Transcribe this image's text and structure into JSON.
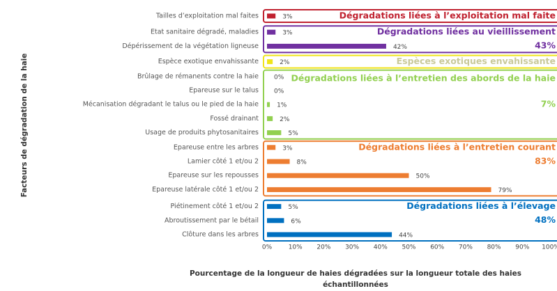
{
  "chart_data": {
    "type": "bar",
    "ylabel": "Facteurs de dégradation de la haie",
    "xlabel": [
      "Pourcentage de la longueur de haies dégradées sur la longueur totale des haies",
      "échantillonnées"
    ],
    "xlim": [
      0,
      100
    ],
    "xticks": [
      {
        "value": 0,
        "label": "0%"
      },
      {
        "value": 10,
        "label": "10%"
      },
      {
        "value": 20,
        "label": "20%"
      },
      {
        "value": 30,
        "label": "30%"
      },
      {
        "value": 40,
        "label": "40%"
      },
      {
        "value": 50,
        "label": "50%"
      },
      {
        "value": 60,
        "label": "60%"
      },
      {
        "value": 70,
        "label": "70%"
      },
      {
        "value": 80,
        "label": "80%"
      },
      {
        "value": 90,
        "label": "90%"
      },
      {
        "value": 100,
        "label": "100%"
      }
    ],
    "groups": [
      {
        "name": "Dégradations liées à l’exploitation mal faite",
        "color": "#c0212f",
        "categories": [
          "Tailles d’exploitation mal faites"
        ],
        "values": [
          3
        ],
        "value_labels": [
          "3%"
        ]
      },
      {
        "name": "Dégradations liées au vieillissement",
        "color": "#7030a0",
        "total": 43,
        "total_label": "43%",
        "categories": [
          "Etat sanitaire dégradé, maladies",
          "Dépérissement de la végétation ligneuse"
        ],
        "values": [
          3,
          42
        ],
        "value_labels": [
          "3%",
          "42%"
        ]
      },
      {
        "name": "Espèces exotiques envahissante",
        "color": "#f0e41a",
        "text_color": "#c9c99a",
        "categories": [
          "Espèce exotique envahissante"
        ],
        "values": [
          2
        ],
        "value_labels": [
          "2%"
        ]
      },
      {
        "name": "Dégradations liées à l’entretien des abords de la haie",
        "color": "#92d050",
        "total": 7,
        "total_label": "7%",
        "categories": [
          "Brûlage de rémanents contre la haie",
          "Epareuse sur le talus",
          "Mécanisation dégradant le talus ou le pied de la haie",
          "Fossé drainant",
          "Usage de produits phytosanitaires"
        ],
        "values": [
          0,
          0,
          1,
          2,
          5
        ],
        "value_labels": [
          "0%",
          "0%",
          "1%",
          "2%",
          "5%"
        ]
      },
      {
        "name": "Dégradations liées à l’entretien courant",
        "color": "#ed7d31",
        "total": 83,
        "total_label": "83%",
        "categories": [
          "Epareuse entre les arbres",
          "Lamier côté 1 et/ou 2",
          "Epareuse sur les repousses",
          "Epareuse latérale côté 1 et/ou 2"
        ],
        "values": [
          3,
          8,
          50,
          79
        ],
        "value_labels": [
          "3%",
          "8%",
          "50%",
          "79%"
        ]
      },
      {
        "name": "Dégradations liées à l’élevage",
        "color": "#0070c0",
        "total": 48,
        "total_label": "48%",
        "categories": [
          "Piétinement côté 1 et/ou 2",
          "Abroutissement par le bétail",
          "Clôture dans les arbres"
        ],
        "values": [
          5,
          6,
          44
        ],
        "value_labels": [
          "5%",
          "6%",
          "44%"
        ]
      }
    ]
  }
}
